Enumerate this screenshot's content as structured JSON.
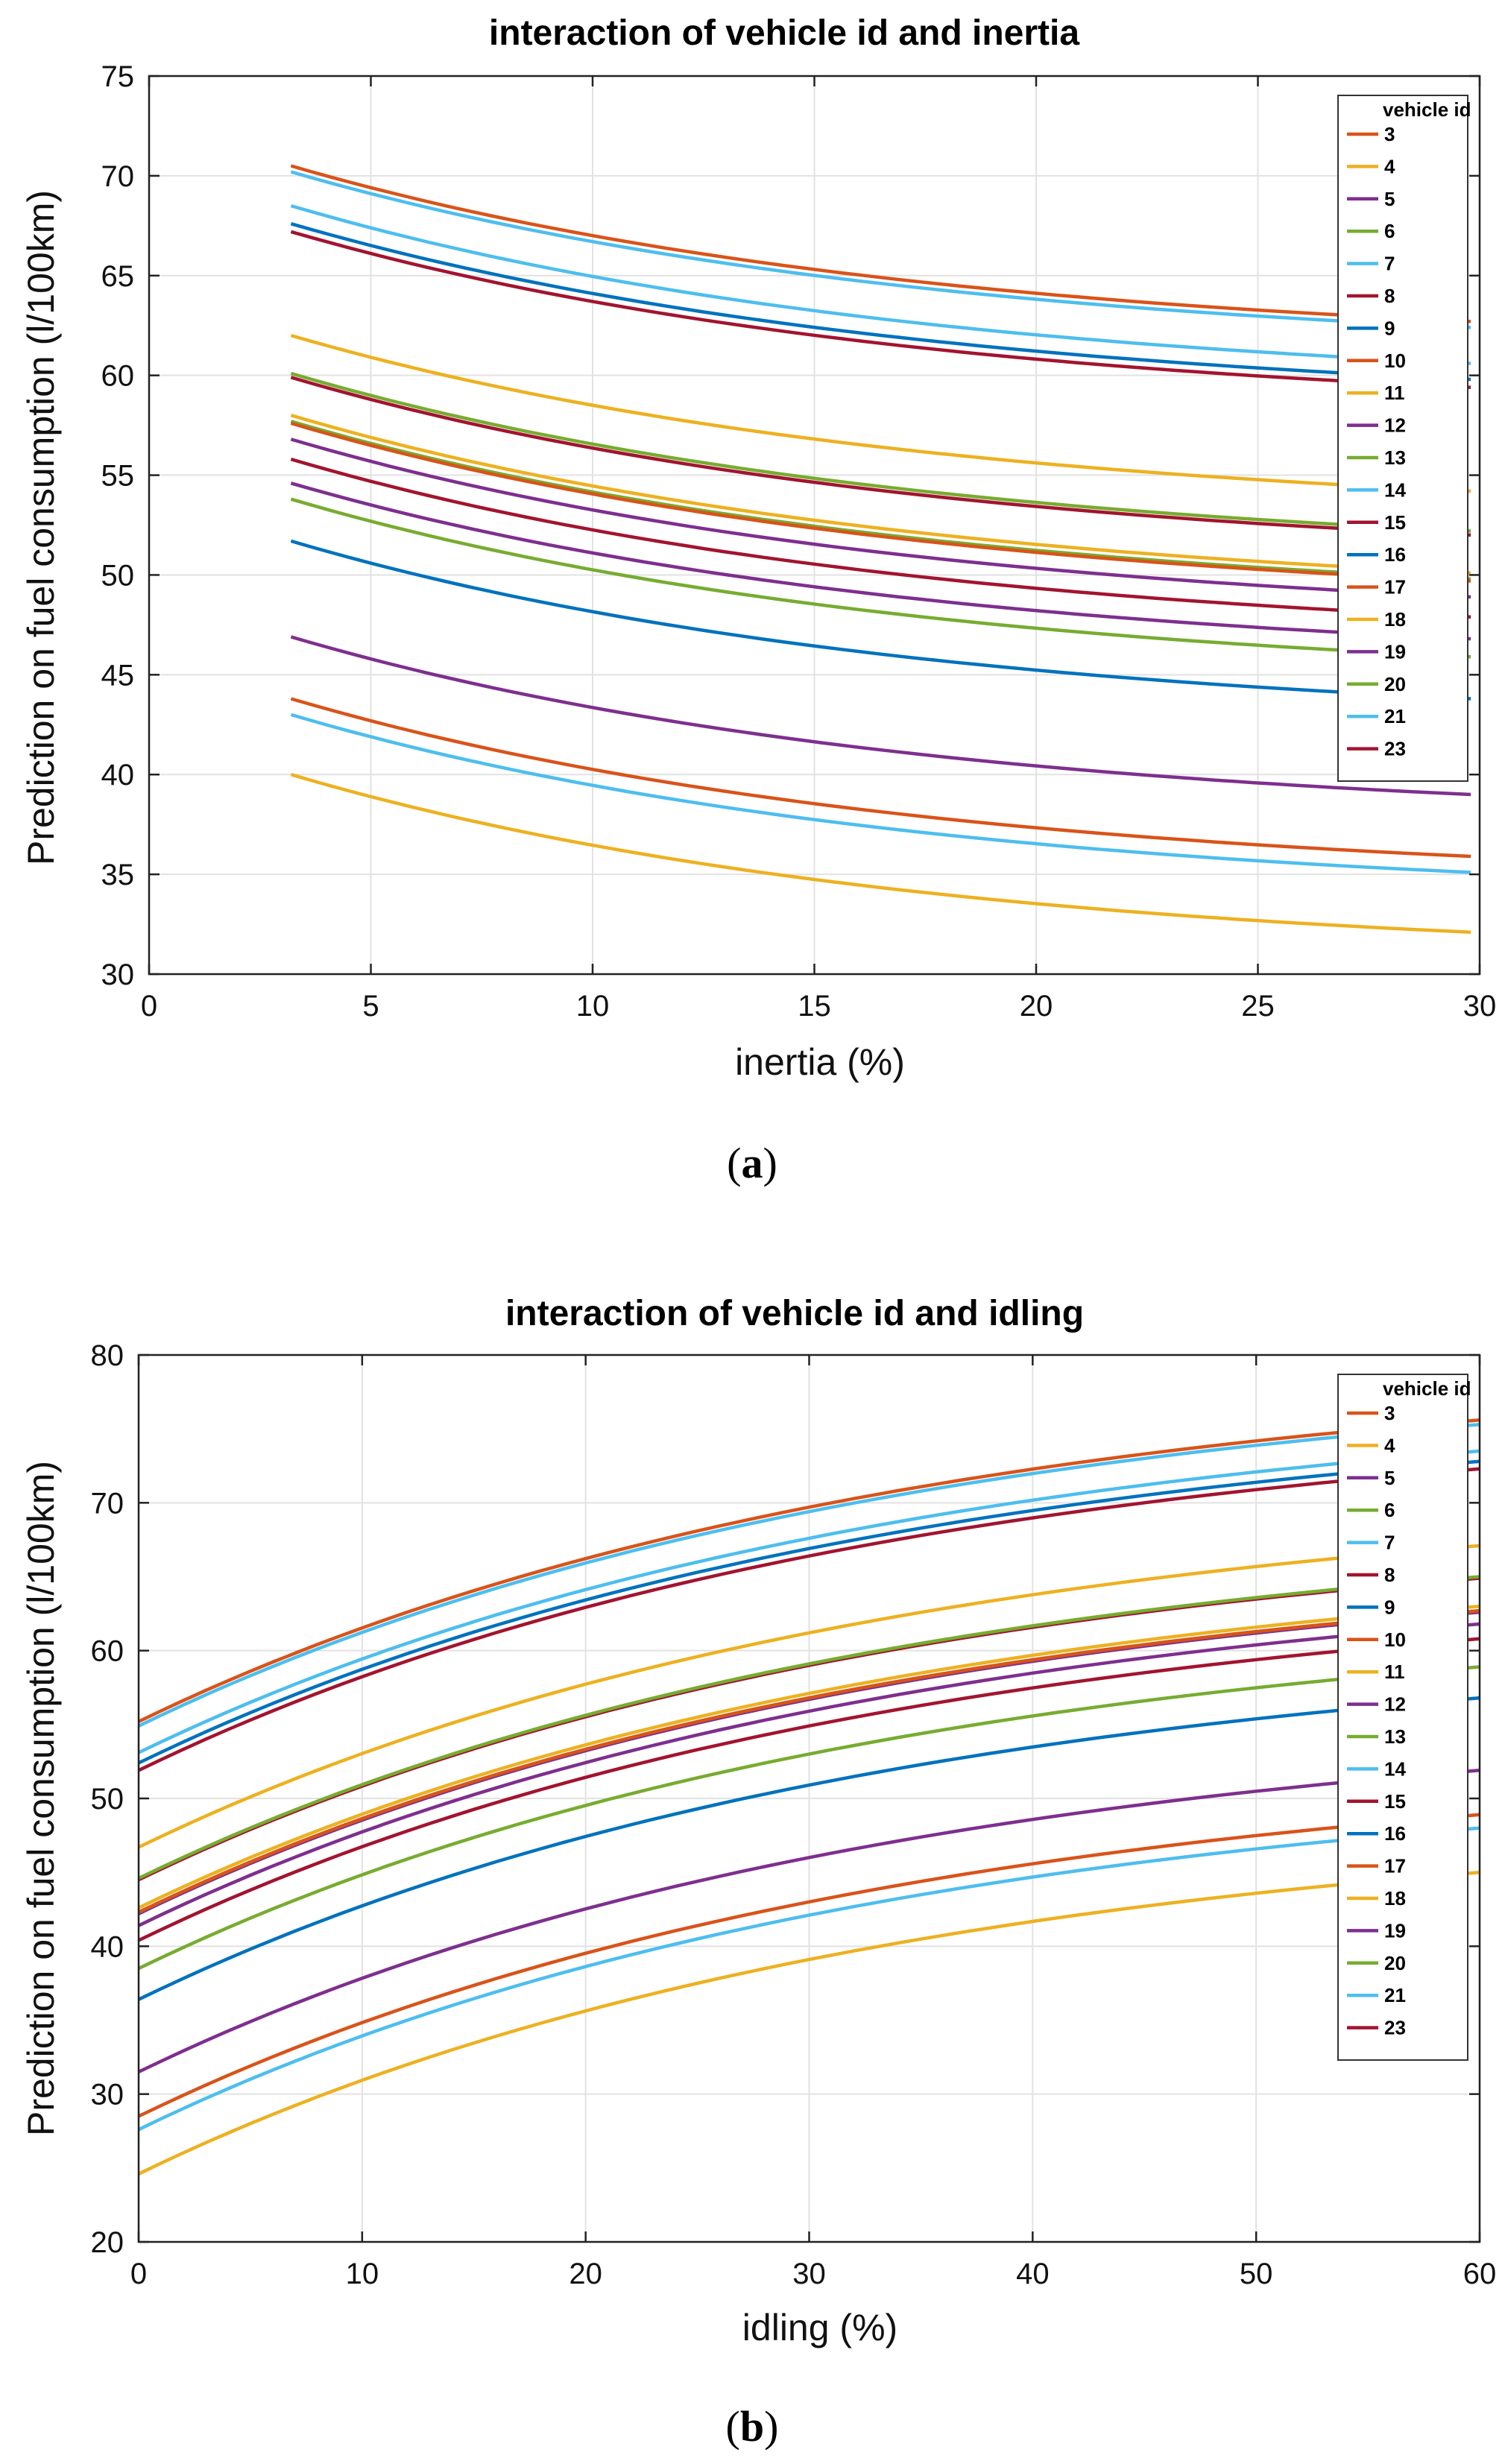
{
  "chart_data": [
    {
      "type": "line",
      "panel": "(a)",
      "title": "interaction of vehicle id and inertia",
      "xlabel": "inertia (%)",
      "ylabel": "Prediction on fuel consumption (l/100km)",
      "xlim": [
        0,
        30
      ],
      "ylim": [
        30,
        75
      ],
      "xticks": [
        0,
        5,
        10,
        15,
        20,
        25,
        30
      ],
      "yticks": [
        30,
        35,
        40,
        45,
        50,
        55,
        60,
        65,
        70,
        75
      ],
      "grid": true,
      "legend": {
        "title": "vehicle id",
        "placement": "top-right"
      },
      "x_range": [
        3.2,
        29.8
      ],
      "series": [
        {
          "name": "3",
          "color": "#d95319",
          "start": 70.5,
          "end": 62.7
        },
        {
          "name": "4",
          "color": "#edb120",
          "start": 40.0,
          "end": 32.1
        },
        {
          "name": "5",
          "color": "#7e2f8e",
          "start": 46.9,
          "end": 39.0
        },
        {
          "name": "6",
          "color": "#77ac30",
          "start": 57.7,
          "end": 49.8
        },
        {
          "name": "7",
          "color": "#4dbeee",
          "start": 70.2,
          "end": 62.4
        },
        {
          "name": "8",
          "color": "#a2142f",
          "start": 59.9,
          "end": 52.0
        },
        {
          "name": "9",
          "color": "#0072bd",
          "start": 67.6,
          "end": 59.8
        },
        {
          "name": "10",
          "color": "#d95319",
          "start": 43.8,
          "end": 35.9
        },
        {
          "name": "11",
          "color": "#edb120",
          "start": 62.0,
          "end": 54.2
        },
        {
          "name": "12",
          "color": "#7e2f8e",
          "start": 56.8,
          "end": 48.9
        },
        {
          "name": "13",
          "color": "#77ac30",
          "start": 60.1,
          "end": 52.2
        },
        {
          "name": "14",
          "color": "#4dbeee",
          "start": 68.5,
          "end": 60.6
        },
        {
          "name": "15",
          "color": "#a2142f",
          "start": 55.8,
          "end": 47.9
        },
        {
          "name": "16",
          "color": "#0072bd",
          "start": 51.7,
          "end": 43.8
        },
        {
          "name": "17",
          "color": "#d95319",
          "start": 57.6,
          "end": 49.7
        },
        {
          "name": "18",
          "color": "#edb120",
          "start": 58.0,
          "end": 50.1
        },
        {
          "name": "19",
          "color": "#7e2f8e",
          "start": 54.6,
          "end": 46.8
        },
        {
          "name": "20",
          "color": "#77ac30",
          "start": 53.8,
          "end": 45.9
        },
        {
          "name": "21",
          "color": "#4dbeee",
          "start": 43.0,
          "end": 35.1
        },
        {
          "name": "23",
          "color": "#a2142f",
          "start": 67.2,
          "end": 59.4
        }
      ]
    },
    {
      "type": "line",
      "panel": "(b)",
      "title": "interaction of vehicle id and idling",
      "xlabel": "idling (%)",
      "ylabel": "Prediction on fuel consumption (l/100km)",
      "xlim": [
        0,
        60
      ],
      "ylim": [
        20,
        80
      ],
      "xticks": [
        0,
        10,
        20,
        30,
        40,
        50,
        60
      ],
      "yticks": [
        20,
        30,
        40,
        50,
        60,
        70,
        80
      ],
      "grid": true,
      "legend": {
        "title": "vehicle id",
        "placement": "top-right"
      },
      "x_range": [
        0,
        60
      ],
      "series": [
        {
          "name": "3",
          "color": "#d95319",
          "start": 55.2,
          "end": 75.6
        },
        {
          "name": "4",
          "color": "#edb120",
          "start": 24.6,
          "end": 45.0
        },
        {
          "name": "5",
          "color": "#7e2f8e",
          "start": 42.2,
          "end": 62.6
        },
        {
          "name": "6",
          "color": "#77ac30",
          "start": 42.3,
          "end": 62.7
        },
        {
          "name": "7",
          "color": "#4dbeee",
          "start": 54.9,
          "end": 75.3
        },
        {
          "name": "8",
          "color": "#a2142f",
          "start": 44.5,
          "end": 64.9
        },
        {
          "name": "9",
          "color": "#0072bd",
          "start": 52.4,
          "end": 72.8
        },
        {
          "name": "10",
          "color": "#d95319",
          "start": 28.5,
          "end": 48.9
        },
        {
          "name": "11",
          "color": "#edb120",
          "start": 46.7,
          "end": 67.1
        },
        {
          "name": "12",
          "color": "#7e2f8e",
          "start": 41.4,
          "end": 61.8
        },
        {
          "name": "13",
          "color": "#77ac30",
          "start": 44.6,
          "end": 65.0
        },
        {
          "name": "14",
          "color": "#4dbeee",
          "start": 53.1,
          "end": 73.5
        },
        {
          "name": "15",
          "color": "#a2142f",
          "start": 40.4,
          "end": 60.8
        },
        {
          "name": "16",
          "color": "#0072bd",
          "start": 36.4,
          "end": 56.8
        },
        {
          "name": "17",
          "color": "#d95319",
          "start": 42.3,
          "end": 62.7
        },
        {
          "name": "18",
          "color": "#edb120",
          "start": 42.6,
          "end": 63.0
        },
        {
          "name": "19",
          "color": "#7e2f8e",
          "start": 31.5,
          "end": 51.9
        },
        {
          "name": "20",
          "color": "#77ac30",
          "start": 38.5,
          "end": 58.9
        },
        {
          "name": "21",
          "color": "#4dbeee",
          "start": 27.6,
          "end": 48.0
        },
        {
          "name": "23",
          "color": "#a2142f",
          "start": 51.9,
          "end": 72.3
        }
      ]
    }
  ]
}
